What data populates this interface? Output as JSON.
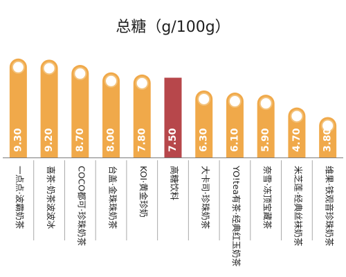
{
  "chart_data": {
    "type": "bar",
    "title": "总糖（g/100g）",
    "categories": [
      "一点点·波霸奶茶",
      "喜茶·奶茶波波冰",
      "COCO都可·珍珠奶茶",
      "台盖·金珠珠奶茶",
      "KOI·黄金珍奶",
      "高糖饮料",
      "大卡司·珍珠奶茶",
      "YO!tea有茶·经典红玉奶茶",
      "奈雪·冻顶宝藏茶",
      "米芝莲·经典丝袜奶茶",
      "维果·铁观音珍珠奶茶"
    ],
    "values": [
      9.3,
      9.2,
      8.7,
      8.0,
      7.8,
      7.5,
      6.3,
      6.1,
      5.9,
      4.7,
      3.8
    ],
    "value_labels": [
      "9.30",
      "9.20",
      "8.70",
      "8.00",
      "7.80",
      "7.50",
      "6.30",
      "6.10",
      "5.90",
      "4.70",
      "3.80"
    ],
    "ylim": [
      0,
      10
    ],
    "grid": false,
    "xlabel": "",
    "ylabel": ""
  },
  "colors": {
    "bar": "#f0a94a",
    "highlight_bar": "#b7474b",
    "bead": "#ffffff",
    "bead_ring": "#f3c27b",
    "axis": "#7a7a7a",
    "divider": "#a8a8a8",
    "text": "#1f1f1f"
  }
}
